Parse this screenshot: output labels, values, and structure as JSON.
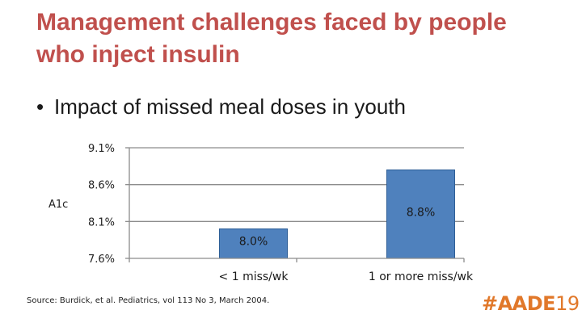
{
  "slide": {
    "title": "Management challenges faced by people who inject insulin",
    "bullet": "Impact of missed meal doses in youth",
    "source": "Source: Burdick, et al. Pediatrics, vol 113 No 3, March 2004.",
    "logo_main": "#AADE",
    "logo_year": "19"
  },
  "colors": {
    "title": "#C0504D",
    "bar": "#4F81BD",
    "bar_stroke": "#2E5E96",
    "logo": "#E1782A"
  },
  "icons": {
    "bullet": "bullet-dot-icon"
  },
  "chart_data": {
    "type": "bar",
    "ylabel": "A1c",
    "xlabel": "",
    "ylim": [
      7.6,
      9.1
    ],
    "yticks": [
      7.6,
      8.1,
      8.6,
      9.1
    ],
    "ytick_labels": [
      "7.6%",
      "8.1%",
      "8.6%",
      "9.1%"
    ],
    "grid": true,
    "categories": [
      "< 1 miss/wk",
      "1 or more miss/wk"
    ],
    "values": [
      8.0,
      8.8
    ],
    "data_labels": [
      "8.0%",
      "8.8%"
    ]
  }
}
